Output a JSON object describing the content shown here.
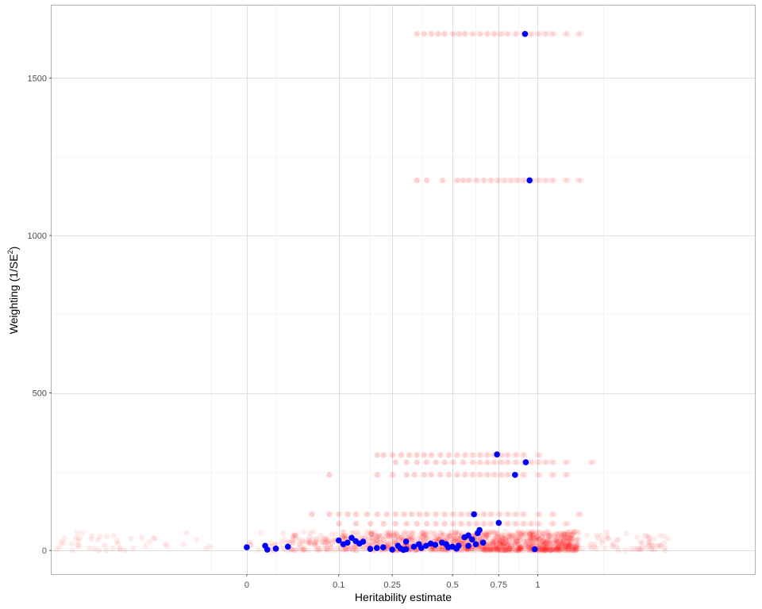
{
  "chart_data": {
    "type": "scatter",
    "title": "",
    "xlabel": "Heritability estimate",
    "ylabel_text": "Weighting (1/SE",
    "ylabel_sup": "2",
    "ylabel_close": ")",
    "x_scale": "sqrt",
    "xlim": [
      -0.45,
      3.05
    ],
    "ylim": [
      -75,
      1730
    ],
    "x_ticks": [
      0,
      0.1,
      0.25,
      0.5,
      0.75,
      1
    ],
    "x_tick_labels": [
      "0",
      "0.1",
      "0.25",
      "0.5",
      "0.75",
      "1"
    ],
    "x_minor_gridlines": [
      -0.015,
      0.01,
      0.18,
      0.36,
      0.62,
      0.87,
      1.5
    ],
    "y_ticks": [
      0,
      500,
      1000,
      1500
    ],
    "y_tick_labels": [
      "0",
      "500",
      "1000",
      "1500"
    ],
    "y_minor_gridlines": [
      250,
      750,
      1250
    ],
    "grid": true,
    "legend": "none",
    "series": [
      {
        "color": "#ff0000",
        "opacity": 0.08,
        "rows": [
          {
            "y": 1640,
            "x": [
              0.34,
              0.37,
              0.4,
              0.43,
              0.46,
              0.5,
              0.53,
              0.56,
              0.6,
              0.64,
              0.68,
              0.72,
              0.76,
              0.8,
              0.85,
              0.9,
              0.95,
              1.0,
              1.05,
              1.1,
              1.2,
              1.3
            ]
          },
          {
            "y": 1175,
            "x": [
              0.34,
              0.38,
              0.45,
              0.52,
              0.55,
              0.58,
              0.62,
              0.66,
              0.7,
              0.74,
              0.78,
              0.82,
              0.86,
              0.9,
              0.95,
              1.0,
              1.05,
              1.1,
              1.2,
              1.3
            ]
          },
          {
            "y": 303,
            "x": [
              0.2,
              0.22,
              0.25,
              0.28,
              0.31,
              0.34,
              0.37,
              0.4,
              0.44,
              0.48,
              0.52,
              0.56,
              0.6,
              0.64,
              0.68,
              0.72,
              0.76,
              0.8,
              0.85,
              0.9,
              1.0
            ]
          },
          {
            "y": 280,
            "x": [
              0.26,
              0.3,
              0.34,
              0.38,
              0.42,
              0.46,
              0.5,
              0.55,
              0.6,
              0.64,
              0.68,
              0.72,
              0.76,
              0.8,
              0.85,
              0.9,
              0.95,
              1.0,
              1.05,
              1.1,
              1.2,
              1.4
            ]
          },
          {
            "y": 240,
            "x": [
              0.08,
              0.2,
              0.25,
              0.3,
              0.33,
              0.37,
              0.4,
              0.44,
              0.48,
              0.52,
              0.56,
              0.6,
              0.64,
              0.68,
              0.72,
              0.76,
              0.8,
              0.85,
              0.9,
              1.0,
              1.1,
              1.2
            ]
          },
          {
            "y": 115,
            "x": [
              0.05,
              0.08,
              0.1,
              0.12,
              0.14,
              0.17,
              0.2,
              0.23,
              0.26,
              0.29,
              0.32,
              0.35,
              0.38,
              0.42,
              0.46,
              0.5,
              0.54,
              0.58,
              0.62,
              0.66,
              0.7,
              0.75,
              0.8,
              0.85,
              0.9,
              1.0,
              1.1,
              1.3
            ]
          },
          {
            "y": 85,
            "x": [
              0.1,
              0.14,
              0.18,
              0.22,
              0.26,
              0.3,
              0.34,
              0.38,
              0.42,
              0.46,
              0.5,
              0.54,
              0.58,
              0.62,
              0.66,
              0.7,
              0.75,
              0.8,
              0.85,
              0.9,
              0.95,
              1.0,
              1.1,
              1.2
            ]
          }
        ],
        "band": {
          "y": [
            0,
            60
          ],
          "x": [
            -0.45,
            2.1
          ],
          "core_x": [
            0.0,
            1.3
          ],
          "count": 1400
        }
      },
      {
        "color": "#0000ff",
        "opacity": 1,
        "points": [
          [
            0.915,
            1640
          ],
          [
            0.945,
            1175
          ],
          [
            0.74,
            305
          ],
          [
            0.92,
            280
          ],
          [
            0.85,
            240
          ],
          [
            0.61,
            115
          ],
          [
            0.75,
            88
          ],
          [
            0.64,
            65
          ],
          [
            0.63,
            55
          ],
          [
            0.58,
            48
          ],
          [
            0.56,
            42
          ],
          [
            0.6,
            35
          ],
          [
            0.66,
            25
          ],
          [
            0.62,
            20
          ],
          [
            0.58,
            15
          ],
          [
            0.1,
            32
          ],
          [
            0.13,
            40
          ],
          [
            0.14,
            30
          ],
          [
            0.12,
            25
          ],
          [
            0.15,
            22
          ],
          [
            0.16,
            28
          ],
          [
            0.11,
            20
          ],
          [
            0.2,
            8
          ],
          [
            0.18,
            5
          ],
          [
            0.25,
            3
          ],
          [
            0.28,
            6
          ],
          [
            0.3,
            4
          ],
          [
            0.33,
            12
          ],
          [
            0.35,
            20
          ],
          [
            0.38,
            15
          ],
          [
            0.4,
            22
          ],
          [
            0.42,
            18
          ],
          [
            0.45,
            25
          ],
          [
            0.47,
            20
          ],
          [
            0.48,
            10
          ],
          [
            0.5,
            12
          ],
          [
            0.52,
            6
          ],
          [
            0.53,
            15
          ],
          [
            0.3,
            28
          ],
          [
            0.27,
            15
          ],
          [
            0.36,
            8
          ],
          [
            0.0,
            10
          ],
          [
            0.004,
            15
          ],
          [
            0.01,
            6
          ],
          [
            0.02,
            12
          ],
          [
            0.005,
            3
          ],
          [
            0.98,
            4
          ],
          [
            0.29,
            2
          ],
          [
            0.22,
            10
          ]
        ]
      }
    ]
  }
}
